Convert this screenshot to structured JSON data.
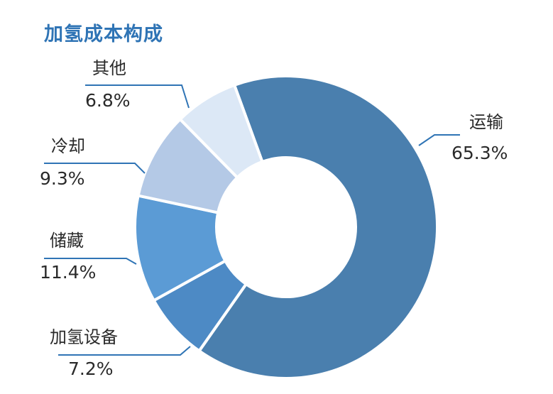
{
  "chart_data": {
    "type": "pie",
    "title": "加氢成本构成",
    "categories": [
      "运输",
      "加氢设备",
      "储藏",
      "冷却",
      "其他"
    ],
    "values": [
      65.3,
      7.2,
      11.4,
      9.3,
      6.8
    ],
    "value_labels": [
      "65.3%",
      "7.2%",
      "11.4%",
      "9.3%",
      "6.8%"
    ],
    "colors": [
      "#4a7fae",
      "#4d8ac5",
      "#5b9bd5",
      "#b4c9e6",
      "#dce8f6"
    ],
    "legend": "none",
    "grid": false
  }
}
